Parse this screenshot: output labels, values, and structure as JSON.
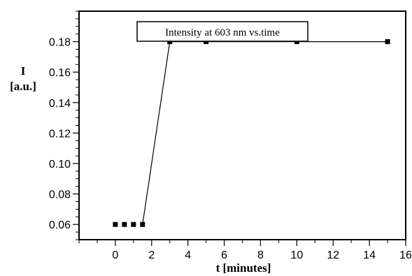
{
  "chart_data": {
    "type": "line",
    "legend": "Intensity at 603 nm vs.time",
    "xlabel": "t [minutes]",
    "ylabel_symbol": "I",
    "ylabel_unit": "[a.u.]",
    "xlim": [
      -2,
      16
    ],
    "ylim": [
      0.05,
      0.2
    ],
    "xticks": [
      0,
      2,
      4,
      6,
      8,
      10,
      12,
      14,
      16
    ],
    "yticks": [
      0.06,
      0.08,
      0.1,
      0.12,
      0.14,
      0.16,
      0.18
    ],
    "ytick_labels": [
      "0.06",
      "0.08",
      "0.10",
      "0.12",
      "0.14",
      "0.16",
      "0.18"
    ],
    "series": [
      {
        "x": [
          0,
          0.5,
          1,
          1.5,
          3,
          5,
          10,
          15
        ],
        "y": [
          0.06,
          0.06,
          0.06,
          0.06,
          0.18,
          0.18,
          0.18,
          0.18
        ]
      }
    ],
    "line_segments": [
      [
        1.5,
        3
      ],
      [
        3,
        5
      ],
      [
        5,
        10
      ],
      [
        10,
        15
      ]
    ],
    "colors": {
      "line": "#000000",
      "marker": "#000000"
    }
  }
}
